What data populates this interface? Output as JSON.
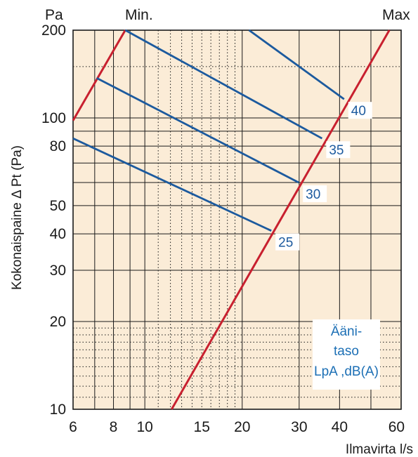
{
  "chart_data": {
    "type": "line",
    "title": "",
    "xlabel": "Ilmavirta l/s",
    "ylabel": "Kokonaispaine Δ Pt (Pa)",
    "y_unit": "Pa",
    "x_scale": "log",
    "y_scale": "log",
    "xlim": [
      6,
      62
    ],
    "ylim": [
      10,
      200
    ],
    "x_ticks": [
      6,
      8,
      10,
      15,
      20,
      30,
      40,
      60
    ],
    "y_ticks": [
      10,
      20,
      30,
      40,
      50,
      80,
      100,
      200
    ],
    "grid": true,
    "limit_lines": [
      {
        "label": "Min.",
        "color": "#c8202f",
        "points": [
          [
            6,
            98
          ],
          [
            8.7,
            200
          ]
        ]
      },
      {
        "label": "Max",
        "color": "#c8202f",
        "points": [
          [
            12.1,
            10
          ],
          [
            57,
            200
          ]
        ]
      }
    ],
    "series": [
      {
        "name": "25",
        "color": "#1c5a9e",
        "points": [
          [
            6,
            85
          ],
          [
            24.6,
            41
          ]
        ]
      },
      {
        "name": "30",
        "color": "#1c5a9e",
        "points": [
          [
            7.1,
            137
          ],
          [
            29.9,
            60
          ]
        ]
      },
      {
        "name": "35",
        "color": "#1c5a9e",
        "points": [
          [
            8.7,
            200
          ],
          [
            35.3,
            85
          ]
        ]
      },
      {
        "name": "40",
        "color": "#1c5a9e",
        "points": [
          [
            21,
            200
          ],
          [
            41.3,
            116
          ]
        ]
      }
    ],
    "legend": {
      "lines": [
        "Ääni-",
        "taso",
        "LpA ,dB(A)"
      ],
      "position": "bottom-right"
    }
  },
  "colors": {
    "plot_background": "#fbecd7",
    "grid": "#1a1a1a",
    "sound_lines": "#1c5a9e",
    "limit_lines": "#c8202f"
  }
}
